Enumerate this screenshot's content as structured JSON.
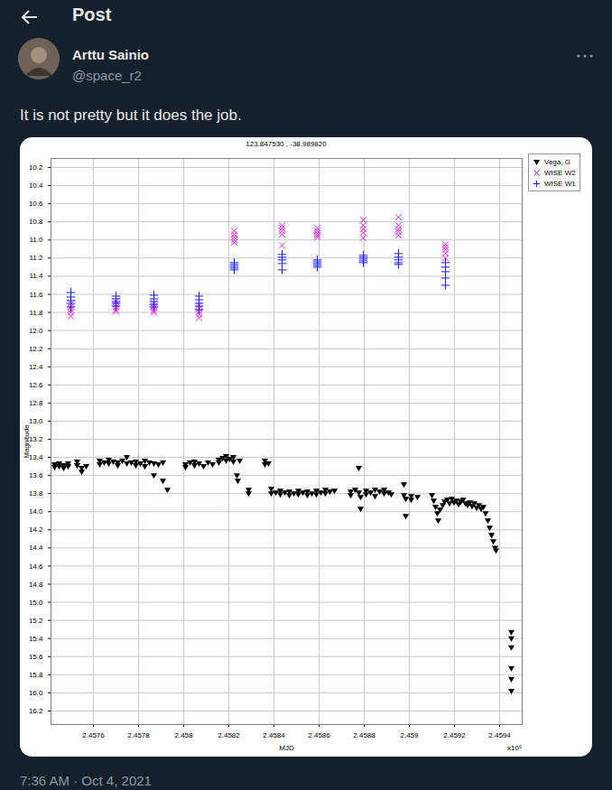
{
  "header": {
    "title": "Post"
  },
  "post": {
    "author": "Arttu Sainio",
    "handle": "@space_r2",
    "text": "It is not pretty but it does the job.",
    "timestamp": "7:36 AM · Oct 4, 2021"
  },
  "chart_data": {
    "type": "scatter",
    "title": "123.847530 , -38.989820",
    "x_label": "MJD",
    "x_multiplier_label": "x10⁶",
    "y_label": "Magnitude",
    "xlim": [
      2.457412,
      2.4595
    ],
    "xticks": [
      2.4576,
      2.4578,
      2.458,
      2.4582,
      2.4584,
      2.4586,
      2.4588,
      2.459,
      2.4592,
      2.4594
    ],
    "ylim": [
      16.35,
      10.1
    ],
    "yticks": [
      10.2,
      10.4,
      10.6,
      10.8,
      {
        "value": 11,
        "label": "11.0"
      },
      11.2,
      11.4,
      11.6,
      11.8,
      {
        "value": 12,
        "label": "12.0"
      },
      12.2,
      12.4,
      12.6,
      12.8,
      {
        "value": 13,
        "label": "13.0"
      },
      13.2,
      13.4,
      13.6,
      13.8,
      {
        "value": 14,
        "label": "14.0"
      },
      14.2,
      14.4,
      14.6,
      14.8,
      {
        "value": 15,
        "label": "15.0"
      },
      15.2,
      15.4,
      15.6,
      15.8,
      {
        "value": 16,
        "label": "16.0"
      },
      16.2
    ],
    "grid": true,
    "legend": "right",
    "series": [
      {
        "name": "Vega, G",
        "color": "#000000",
        "marker": "triangle-down",
        "x": [
          2.457428,
          2.457428,
          2.457448,
          2.457448,
          2.457468,
          2.457468,
          2.457488,
          2.457488,
          2.457528,
          2.457528,
          2.457548,
          2.457548,
          2.457568,
          2.457628,
          2.457628,
          2.457648,
          2.457668,
          2.457668,
          2.457688,
          2.457708,
          2.457708,
          2.457728,
          2.457748,
          2.457748,
          2.457768,
          2.457788,
          2.457788,
          2.457808,
          2.457828,
          2.457828,
          2.457848,
          2.457868,
          2.457868,
          2.457888,
          2.457908,
          2.457908,
          2.457928,
          2.458008,
          2.458008,
          2.458028,
          2.458048,
          2.458048,
          2.458068,
          2.458088,
          2.458108,
          2.458128,
          2.458156,
          2.458156,
          2.458172,
          2.458188,
          2.458188,
          2.458204,
          2.45822,
          2.45822,
          2.458236,
          2.45824,
          2.458248,
          2.458288,
          2.458288,
          2.45836,
          2.45836,
          2.458376,
          2.458388,
          2.458388,
          2.458408,
          2.458428,
          2.458428,
          2.458448,
          2.458468,
          2.458468,
          2.458488,
          2.458508,
          2.458508,
          2.458528,
          2.458548,
          2.458548,
          2.458568,
          2.458588,
          2.458588,
          2.458608,
          2.458628,
          2.458628,
          2.458648,
          2.458668,
          2.45874,
          2.45874,
          2.45876,
          2.458776,
          2.458776,
          2.458784,
          2.458784,
          2.458808,
          2.458808,
          2.458828,
          2.458848,
          2.458848,
          2.458868,
          2.458888,
          2.458888,
          2.458908,
          2.45892,
          2.458976,
          2.458976,
          2.458984,
          2.458984,
          2.459008,
          2.459008,
          2.459036,
          2.4591,
          2.459108,
          2.459116,
          2.459124,
          2.459128,
          2.459136,
          2.459148,
          2.459156,
          2.459168,
          2.459178,
          2.459188,
          2.459198,
          2.459208,
          2.459218,
          2.459228,
          2.459238,
          2.459248,
          2.459258,
          2.459268,
          2.459278,
          2.459288,
          2.459298,
          2.459308,
          2.459318,
          2.459328,
          2.459338,
          2.459348,
          2.459356,
          2.459364,
          2.459372,
          2.45938,
          2.459384,
          2.459452,
          2.459452,
          2.459452,
          2.459452,
          2.459452,
          2.459452
        ],
        "values": [
          13.48,
          13.51,
          13.47,
          13.5,
          13.49,
          13.52,
          13.47,
          13.5,
          13.45,
          13.49,
          13.52,
          13.56,
          13.5,
          13.44,
          13.48,
          13.46,
          13.43,
          13.47,
          13.45,
          13.46,
          13.49,
          13.44,
          13.47,
          13.4,
          13.46,
          13.45,
          13.49,
          13.47,
          13.44,
          13.5,
          13.46,
          13.47,
          13.6,
          13.48,
          13.46,
          13.66,
          13.76,
          13.48,
          13.51,
          13.46,
          13.49,
          13.45,
          13.47,
          13.5,
          13.46,
          13.48,
          13.43,
          13.46,
          13.41,
          13.44,
          13.39,
          13.42,
          13.45,
          13.4,
          13.6,
          13.66,
          13.44,
          13.76,
          13.8,
          13.44,
          13.48,
          13.47,
          13.75,
          13.8,
          13.79,
          13.77,
          13.81,
          13.79,
          13.78,
          13.82,
          13.8,
          13.77,
          13.81,
          13.79,
          13.78,
          13.82,
          13.8,
          13.77,
          13.81,
          13.79,
          13.76,
          13.8,
          13.78,
          13.77,
          13.78,
          13.82,
          13.76,
          13.52,
          13.79,
          13.97,
          13.84,
          13.77,
          13.81,
          13.79,
          13.76,
          13.83,
          13.78,
          13.8,
          13.76,
          13.79,
          13.81,
          13.7,
          13.82,
          14.05,
          13.86,
          13.83,
          13.87,
          13.84,
          13.82,
          13.88,
          13.95,
          14.02,
          14.1,
          13.98,
          13.93,
          13.89,
          13.87,
          13.91,
          13.86,
          13.9,
          13.88,
          13.92,
          13.89,
          13.87,
          13.91,
          13.93,
          13.9,
          13.94,
          13.91,
          13.96,
          13.93,
          13.97,
          13.95,
          14.02,
          14.1,
          14.18,
          14.26,
          14.33,
          14.4,
          14.43,
          15.33,
          15.4,
          15.5,
          15.73,
          15.85,
          15.98
        ]
      },
      {
        "name": "WISE W2",
        "color": "#e020e0",
        "marker": "x",
        "x": [
          2.4575,
          2.4575,
          2.4575,
          2.4575,
          2.4575,
          2.4577,
          2.4577,
          2.4577,
          2.4577,
          2.4577,
          2.457868,
          2.457868,
          2.457868,
          2.457868,
          2.457868,
          2.458068,
          2.458068,
          2.458068,
          2.458068,
          2.458068,
          2.458224,
          2.458224,
          2.458224,
          2.458224,
          2.458224,
          2.458436,
          2.458436,
          2.458436,
          2.458436,
          2.458436,
          2.458592,
          2.458592,
          2.458592,
          2.458592,
          2.458592,
          2.458796,
          2.458796,
          2.458796,
          2.458796,
          2.458796,
          2.458952,
          2.458952,
          2.458952,
          2.458952,
          2.458952,
          2.45916,
          2.45916,
          2.45916,
          2.45916,
          2.45916
        ],
        "values": [
          11.7,
          11.74,
          11.77,
          11.8,
          11.84,
          11.68,
          11.71,
          11.74,
          11.77,
          11.79,
          11.7,
          11.73,
          11.75,
          11.78,
          11.8,
          11.72,
          11.76,
          11.79,
          11.82,
          11.86,
          10.9,
          10.94,
          10.97,
          11.0,
          11.03,
          10.84,
          10.87,
          10.9,
          10.94,
          11.06,
          10.87,
          10.9,
          10.93,
          10.95,
          10.97,
          10.78,
          10.84,
          10.88,
          10.92,
          10.98,
          10.75,
          10.84,
          10.88,
          10.91,
          10.95,
          11.05,
          11.08,
          11.11,
          11.15,
          11.2
        ]
      },
      {
        "name": "WISE W1",
        "color": "#1a1aff",
        "marker": "plus",
        "x": [
          2.4575,
          2.4575,
          2.4575,
          2.4575,
          2.4575,
          2.4577,
          2.4577,
          2.4577,
          2.4577,
          2.4577,
          2.457868,
          2.457868,
          2.457868,
          2.457868,
          2.457868,
          2.458068,
          2.458068,
          2.458068,
          2.458068,
          2.458068,
          2.458224,
          2.458224,
          2.458224,
          2.458224,
          2.458224,
          2.458436,
          2.458436,
          2.458436,
          2.458436,
          2.458436,
          2.458592,
          2.458592,
          2.458592,
          2.458592,
          2.458592,
          2.458796,
          2.458796,
          2.458796,
          2.458796,
          2.458796,
          2.458952,
          2.458952,
          2.458952,
          2.458952,
          2.458952,
          2.45916,
          2.45916,
          2.45916,
          2.45916,
          2.45916
        ],
        "values": [
          11.58,
          11.63,
          11.67,
          11.7,
          11.74,
          11.62,
          11.65,
          11.68,
          11.7,
          11.73,
          11.61,
          11.65,
          11.68,
          11.71,
          11.74,
          11.62,
          11.66,
          11.7,
          11.73,
          11.77,
          11.25,
          11.27,
          11.29,
          11.31,
          11.33,
          11.16,
          11.19,
          11.22,
          11.26,
          11.33,
          11.22,
          11.24,
          11.26,
          11.28,
          11.3,
          11.17,
          11.19,
          11.21,
          11.23,
          11.25,
          11.15,
          11.19,
          11.22,
          11.25,
          11.27,
          11.25,
          11.3,
          11.35,
          11.42,
          11.5
        ]
      }
    ]
  }
}
